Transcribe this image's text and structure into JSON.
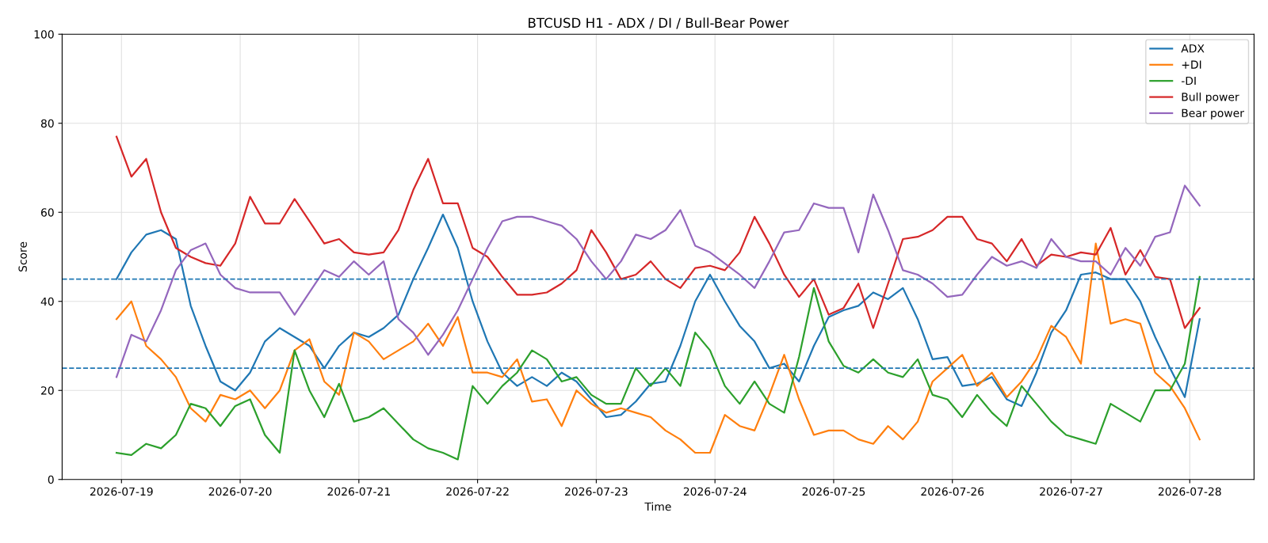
{
  "chart_data": {
    "type": "line",
    "title": "BTCUSD H1 - ADX / DI / Bull-Bear Power",
    "xlabel": "Time",
    "ylabel": "Score",
    "x": [
      "2026-07-18T23:00",
      "2026-07-19T02:00",
      "2026-07-19T05:00",
      "2026-07-19T08:00",
      "2026-07-19T11:00",
      "2026-07-19T14:00",
      "2026-07-19T17:00",
      "2026-07-19T20:00",
      "2026-07-19T23:00",
      "2026-07-20T02:00",
      "2026-07-20T05:00",
      "2026-07-20T08:00",
      "2026-07-20T11:00",
      "2026-07-20T14:00",
      "2026-07-20T17:00",
      "2026-07-20T20:00",
      "2026-07-20T23:00",
      "2026-07-21T02:00",
      "2026-07-21T05:00",
      "2026-07-21T08:00",
      "2026-07-21T11:00",
      "2026-07-21T14:00",
      "2026-07-21T17:00",
      "2026-07-21T20:00",
      "2026-07-21T23:00",
      "2026-07-22T02:00",
      "2026-07-22T05:00",
      "2026-07-22T08:00",
      "2026-07-22T11:00",
      "2026-07-22T14:00",
      "2026-07-22T17:00",
      "2026-07-22T20:00",
      "2026-07-22T23:00",
      "2026-07-23T02:00",
      "2026-07-23T05:00",
      "2026-07-23T08:00",
      "2026-07-23T11:00",
      "2026-07-23T14:00",
      "2026-07-23T17:00",
      "2026-07-23T20:00",
      "2026-07-23T23:00",
      "2026-07-24T02:00",
      "2026-07-24T05:00",
      "2026-07-24T08:00",
      "2026-07-24T11:00",
      "2026-07-24T14:00",
      "2026-07-24T17:00",
      "2026-07-24T20:00",
      "2026-07-24T23:00",
      "2026-07-25T02:00",
      "2026-07-25T05:00",
      "2026-07-25T08:00",
      "2026-07-25T11:00",
      "2026-07-25T14:00",
      "2026-07-25T17:00",
      "2026-07-25T20:00",
      "2026-07-25T23:00",
      "2026-07-26T02:00",
      "2026-07-26T05:00",
      "2026-07-26T08:00",
      "2026-07-26T11:00",
      "2026-07-26T14:00",
      "2026-07-26T17:00",
      "2026-07-26T20:00",
      "2026-07-26T23:00",
      "2026-07-27T02:00",
      "2026-07-27T05:00",
      "2026-07-27T08:00",
      "2026-07-27T11:00",
      "2026-07-27T14:00",
      "2026-07-27T17:00",
      "2026-07-27T20:00",
      "2026-07-27T23:00",
      "2026-07-28T02:00"
    ],
    "series": [
      {
        "name": "ADX",
        "color": "#1f77b4",
        "values": [
          45,
          51,
          55,
          56,
          54,
          39,
          30,
          22,
          20,
          24,
          31,
          34,
          32,
          30,
          25,
          30,
          33,
          32,
          34,
          37,
          45,
          52,
          59.5,
          52,
          40,
          31,
          24,
          21,
          23,
          21,
          24,
          22,
          18,
          14,
          14.5,
          17.5,
          21.5,
          22,
          30,
          40,
          46,
          40,
          34.5,
          31,
          25,
          26,
          22,
          30,
          36.5,
          38,
          39,
          42,
          40.5,
          43,
          36,
          27,
          27.5,
          21,
          21.5,
          23,
          18,
          16.5,
          24,
          33,
          38,
          46,
          46.5,
          45,
          45,
          40,
          32,
          25,
          18.5,
          36
        ]
      },
      {
        "name": "+DI",
        "color": "#ff7f0e",
        "values": [
          36,
          40,
          30,
          27,
          23,
          16,
          13,
          19,
          18,
          20,
          16,
          20,
          29,
          31.5,
          22,
          19,
          33,
          31,
          27,
          29,
          31,
          35,
          30,
          36.5,
          24,
          24,
          23,
          27,
          17.5,
          18,
          12,
          20,
          17,
          15,
          16,
          15,
          14,
          11,
          9,
          6,
          6,
          14.5,
          12,
          11,
          19,
          28,
          18,
          10,
          11,
          11,
          9,
          8,
          12,
          9,
          13,
          22,
          25,
          28,
          21,
          24,
          18.5,
          22,
          27,
          34.5,
          32,
          26,
          53,
          35,
          36,
          35,
          24,
          21,
          16,
          9
        ]
      },
      {
        "name": "-DI",
        "color": "#2ca02c",
        "values": [
          6,
          5.5,
          8,
          7,
          10,
          17,
          16,
          12,
          16.5,
          18,
          10,
          6,
          29,
          20,
          14,
          21.5,
          13,
          14,
          16,
          12.5,
          9,
          7,
          6,
          4.5,
          21,
          17,
          21,
          24,
          29,
          27,
          22,
          23,
          19,
          17,
          17,
          25,
          21,
          25,
          21,
          33,
          29,
          21,
          17,
          22,
          17,
          15,
          27.5,
          43,
          31,
          25.5,
          24,
          27,
          24,
          23,
          27,
          19,
          18,
          14,
          19,
          15,
          12,
          21,
          17,
          13,
          10,
          9,
          8,
          17,
          15,
          13,
          20,
          20,
          26,
          45.5
        ]
      },
      {
        "name": "Bull power",
        "color": "#d62728",
        "values": [
          77,
          68,
          72,
          60,
          52,
          50,
          48.6,
          48,
          53,
          63.5,
          57.5,
          57.5,
          63,
          58,
          53,
          54,
          51,
          50.5,
          51,
          56,
          65,
          72,
          62,
          62,
          52,
          50,
          45.5,
          41.5,
          41.5,
          42,
          44,
          47,
          56,
          51,
          45,
          46,
          49,
          45,
          43,
          47.5,
          48,
          47,
          51,
          59,
          53,
          46,
          41,
          45,
          37,
          38.5,
          44,
          34,
          44,
          54,
          54.5,
          56,
          59,
          59,
          54,
          53,
          49,
          54,
          48,
          50.5,
          50,
          51,
          50.5,
          56.5,
          46,
          51.5,
          45.5,
          45,
          34,
          38.5
        ]
      },
      {
        "name": "Bear power",
        "color": "#9467bd",
        "values": [
          23,
          32.5,
          31,
          38,
          47,
          51.5,
          53,
          46,
          43,
          42,
          42,
          42,
          37,
          42,
          47,
          45.5,
          49,
          46,
          49,
          36,
          33,
          28,
          32.5,
          38,
          45,
          52,
          58,
          59,
          59,
          58,
          57,
          54,
          49,
          45,
          49,
          55,
          54,
          56,
          60.5,
          52.5,
          51,
          48.5,
          46,
          43,
          49,
          55.5,
          56,
          62,
          61,
          61,
          51,
          64,
          56,
          47,
          46,
          44,
          41,
          41.5,
          46,
          50,
          48,
          49,
          47.5,
          54,
          50,
          49,
          49,
          46,
          52,
          48,
          54.5,
          55.5,
          66,
          61.5
        ]
      }
    ],
    "xlim": [
      "2026-07-18T12:00",
      "2026-07-28T13:00"
    ],
    "xticks": [
      "2026-07-19",
      "2026-07-20",
      "2026-07-21",
      "2026-07-22",
      "2026-07-23",
      "2026-07-24",
      "2026-07-25",
      "2026-07-26",
      "2026-07-27",
      "2026-07-28"
    ],
    "ylim": [
      0,
      100
    ],
    "yticks": [
      0,
      20,
      40,
      60,
      80,
      100
    ],
    "ref_lines": [
      {
        "axis": "y",
        "value": 45,
        "color": "#1f77b4",
        "line_style": "dashed"
      },
      {
        "axis": "y",
        "value": 25,
        "color": "#1f77b4",
        "line_style": "dashed"
      }
    ],
    "grid": true,
    "legend": "top right",
    "line_style": "solid",
    "marker": "none"
  }
}
